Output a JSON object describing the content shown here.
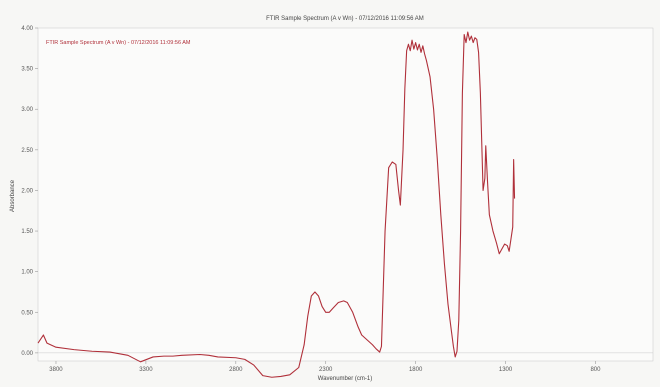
{
  "chart_data": {
    "type": "line",
    "title": "FTIR Sample Spectrum (A v Wn) - 07/12/2016 11:09:56 AM",
    "legend": {
      "position": "top-left",
      "entries": [
        "FTIR Sample Spectrum (A v Wn) - 07/12/2016 11:09:56 AM"
      ]
    },
    "xlabel": "Wavenumber (cm-1)",
    "ylabel": "Absorbance",
    "xlim": [
      3900,
      480
    ],
    "ylim": [
      -0.1,
      4.0
    ],
    "x_ticks": [
      3800,
      3300,
      2800,
      2300,
      1800,
      1300,
      800
    ],
    "y_ticks": [
      {
        "value": 0,
        "label": "0.00"
      },
      {
        "value": 0.5,
        "label": "0.50"
      },
      {
        "value": 1.0,
        "label": "1.00"
      },
      {
        "value": 1.5,
        "label": "1.50"
      },
      {
        "value": 2.0,
        "label": "2.00"
      },
      {
        "value": 2.5,
        "label": "2.50"
      },
      {
        "value": 3.0,
        "label": "3.00"
      },
      {
        "value": 3.5,
        "label": "3.50"
      },
      {
        "value": 4.0,
        "label": "4.00"
      }
    ],
    "grid": false,
    "series": [
      {
        "name": "FTIR Sample Spectrum (A v Wn) - 07/12/2016 11:09:56 AM",
        "color": "#b0303a",
        "points": [
          [
            3900,
            0.12
          ],
          [
            3870,
            0.22
          ],
          [
            3850,
            0.12
          ],
          [
            3800,
            0.07
          ],
          [
            3700,
            0.04
          ],
          [
            3600,
            0.02
          ],
          [
            3500,
            0.01
          ],
          [
            3400,
            -0.03
          ],
          [
            3330,
            -0.11
          ],
          [
            3260,
            -0.05
          ],
          [
            3200,
            -0.04
          ],
          [
            3150,
            -0.04
          ],
          [
            3100,
            -0.03
          ],
          [
            3000,
            -0.02
          ],
          [
            2950,
            -0.03
          ],
          [
            2900,
            -0.05
          ],
          [
            2800,
            -0.06
          ],
          [
            2750,
            -0.08
          ],
          [
            2700,
            -0.15
          ],
          [
            2650,
            -0.28
          ],
          [
            2600,
            -0.3
          ],
          [
            2550,
            -0.29
          ],
          [
            2500,
            -0.27
          ],
          [
            2450,
            -0.18
          ],
          [
            2420,
            0.1
          ],
          [
            2400,
            0.45
          ],
          [
            2380,
            0.7
          ],
          [
            2360,
            0.75
          ],
          [
            2340,
            0.7
          ],
          [
            2320,
            0.57
          ],
          [
            2300,
            0.5
          ],
          [
            2280,
            0.5
          ],
          [
            2260,
            0.55
          ],
          [
            2230,
            0.62
          ],
          [
            2200,
            0.64
          ],
          [
            2180,
            0.62
          ],
          [
            2150,
            0.5
          ],
          [
            2120,
            0.32
          ],
          [
            2100,
            0.22
          ],
          [
            2080,
            0.18
          ],
          [
            2060,
            0.14
          ],
          [
            2040,
            0.1
          ],
          [
            2020,
            0.05
          ],
          [
            2000,
            0.01
          ],
          [
            1990,
            0.08
          ],
          [
            1970,
            1.5
          ],
          [
            1950,
            2.28
          ],
          [
            1930,
            2.35
          ],
          [
            1910,
            2.32
          ],
          [
            1895,
            2.0
          ],
          [
            1885,
            1.82
          ],
          [
            1870,
            2.5
          ],
          [
            1860,
            3.25
          ],
          [
            1850,
            3.72
          ],
          [
            1840,
            3.8
          ],
          [
            1830,
            3.72
          ],
          [
            1820,
            3.85
          ],
          [
            1810,
            3.74
          ],
          [
            1800,
            3.82
          ],
          [
            1790,
            3.73
          ],
          [
            1780,
            3.8
          ],
          [
            1770,
            3.7
          ],
          [
            1760,
            3.78
          ],
          [
            1750,
            3.68
          ],
          [
            1740,
            3.6
          ],
          [
            1720,
            3.4
          ],
          [
            1700,
            3.0
          ],
          [
            1680,
            2.4
          ],
          [
            1660,
            1.7
          ],
          [
            1640,
            1.1
          ],
          [
            1620,
            0.6
          ],
          [
            1600,
            0.25
          ],
          [
            1590,
            0.08
          ],
          [
            1580,
            -0.05
          ],
          [
            1570,
            0.02
          ],
          [
            1560,
            0.4
          ],
          [
            1550,
            1.5
          ],
          [
            1540,
            3.2
          ],
          [
            1530,
            3.92
          ],
          [
            1520,
            3.82
          ],
          [
            1510,
            3.95
          ],
          [
            1500,
            3.85
          ],
          [
            1490,
            3.9
          ],
          [
            1480,
            3.82
          ],
          [
            1470,
            3.88
          ],
          [
            1460,
            3.86
          ],
          [
            1450,
            3.7
          ],
          [
            1440,
            3.2
          ],
          [
            1430,
            2.4
          ],
          [
            1425,
            2.0
          ],
          [
            1415,
            2.15
          ],
          [
            1410,
            2.55
          ],
          [
            1400,
            2.1
          ],
          [
            1390,
            1.7
          ],
          [
            1370,
            1.5
          ],
          [
            1350,
            1.35
          ],
          [
            1335,
            1.22
          ],
          [
            1320,
            1.28
          ],
          [
            1305,
            1.34
          ],
          [
            1290,
            1.32
          ],
          [
            1280,
            1.25
          ],
          [
            1270,
            1.4
          ],
          [
            1260,
            1.55
          ],
          [
            1255,
            2.38
          ],
          [
            1250,
            1.9
          ]
        ]
      }
    ]
  }
}
